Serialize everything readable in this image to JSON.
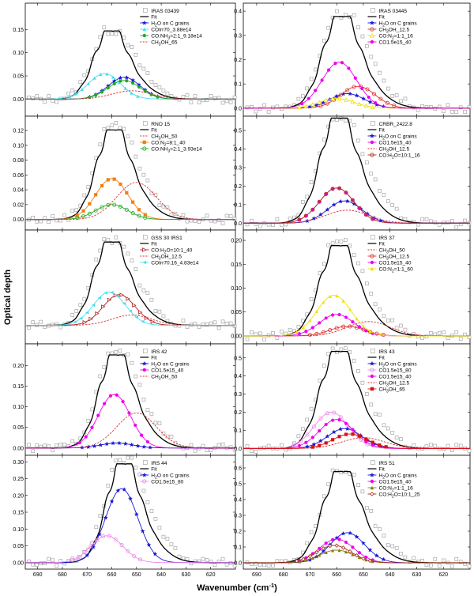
{
  "figure": {
    "ylabel": "Optical depth",
    "xlabel_main": "Wavenumber (cm",
    "xlabel_sup": "-1",
    "xlabel_close": ")",
    "x_ticks": [
      690,
      680,
      670,
      660,
      650,
      640,
      630,
      620
    ]
  },
  "chart_data": [
    {
      "type": "line",
      "title": "IRAS 03439",
      "xlim": [
        695,
        610
      ],
      "ylim": [
        -0.03,
        0.2
      ],
      "yticks": [
        "0.00",
        "0.05",
        "0.10",
        "0.15"
      ],
      "peak": 0.14,
      "peak_center": 661,
      "series": [
        {
          "name": "Fit",
          "style": "fit",
          "peak": 0.14,
          "center": 661
        },
        {
          "name": "H2O on C grains",
          "label": [
            "H",
            "2",
            "O on C grains"
          ],
          "style": "star",
          "color": "#1a1ad8",
          "peak": 0.047,
          "center": 655
        },
        {
          "name": "COIrr70_3.88e14",
          "style": "tri",
          "color": "#40e0f0",
          "peak": 0.055,
          "center": 663
        },
        {
          "name": "CO:NH3=2:1_9.18e14",
          "label": [
            "CO:NH",
            "3",
            "=2:1_9.18e14"
          ],
          "style": "circle",
          "color": "#22aa22",
          "peak": 0.04,
          "center": 655
        },
        {
          "name": "CH3OH_65",
          "label": [
            "CH",
            "3",
            "OH_65"
          ],
          "style": "dash",
          "color": "#e03030",
          "peak": 0.018,
          "center": 652
        }
      ]
    },
    {
      "type": "line",
      "title": "IRAS 03445",
      "xlim": [
        695,
        610
      ],
      "ylim": [
        -0.02,
        0.42
      ],
      "yticks": [
        "0.0",
        "0.1",
        "0.2",
        "0.3",
        "0.4"
      ],
      "peak": 0.37,
      "peak_center": 659,
      "series": [
        {
          "name": "Fit",
          "style": "fit",
          "peak": 0.36,
          "center": 659
        },
        {
          "name": "H2O on C grains",
          "label": [
            "H",
            "2",
            "O on C grains"
          ],
          "style": "star",
          "color": "#1a1ad8",
          "peak": 0.06,
          "center": 656
        },
        {
          "name": "CH3OH_12.5",
          "label": [
            "CH",
            "3",
            "OH_12.5"
          ],
          "style": "ocircle",
          "color": "#e03030",
          "peak": 0.09,
          "center": 652
        },
        {
          "name": "CO:N2=1:1_16",
          "label": [
            "CO:N",
            "2",
            "=1:1_16"
          ],
          "style": "otri",
          "color": "#f0e000",
          "peak": 0.04,
          "center": 660
        },
        {
          "name": "CO1.5e15_40",
          "style": "circle",
          "color": "#ee00ee",
          "peak": 0.19,
          "center": 659
        }
      ]
    },
    {
      "type": "line",
      "title": "RNO 15",
      "xlim": [
        695,
        610
      ],
      "ylim": [
        -0.01,
        0.135
      ],
      "yticks": [
        "0.00",
        "0.02",
        "0.04",
        "0.06",
        "0.08",
        "0.10",
        "0.12"
      ],
      "peak": 0.12,
      "peak_center": 660,
      "series": [
        {
          "name": "Fit",
          "style": "fit",
          "peak": 0.115,
          "center": 660
        },
        {
          "name": "CH3OH_50",
          "label": [
            "CH",
            "3",
            "OH_50"
          ],
          "style": "dash",
          "color": "#e03030",
          "peak": 0.05,
          "center": 650
        },
        {
          "name": "CO:N2=8:1_40",
          "label": [
            "CO:N",
            "2",
            "=8:1_40"
          ],
          "style": "square",
          "color": "#f08010",
          "peak": 0.055,
          "center": 660
        },
        {
          "name": "CO:NH3=2:1_3.93e14",
          "label": [
            "CO:NH",
            "3",
            "=2:1_3.93e14"
          ],
          "style": "ocircle",
          "color": "#22aa22",
          "peak": 0.02,
          "center": 660
        }
      ]
    },
    {
      "type": "line",
      "title": "CRBR_2422.8",
      "xlim": [
        695,
        610
      ],
      "ylim": [
        -0.02,
        0.56
      ],
      "yticks": [
        "0.0",
        "0.1",
        "0.2",
        "0.3",
        "0.4",
        "0.5"
      ],
      "peak": 0.54,
      "peak_center": 660,
      "series": [
        {
          "name": "Fit",
          "style": "fit",
          "peak": 0.54,
          "center": 660
        },
        {
          "name": "H2O on C grains",
          "label": [
            "H",
            "2",
            "O on C grains"
          ],
          "style": "star",
          "color": "#1a1ad8",
          "peak": 0.12,
          "center": 657
        },
        {
          "name": "CO1.5e15_40",
          "style": "circle",
          "color": "#ee00ee",
          "peak": 0.19,
          "center": 660
        },
        {
          "name": "CH3OH_12.5",
          "label": [
            "CH",
            "3",
            "OH_12.5"
          ],
          "style": "dash",
          "color": "#e03030",
          "peak": 0.07,
          "center": 656
        },
        {
          "name": "CO:H2O=10:1_16",
          "label": [
            "CO:H",
            "2",
            "O=10:1_16"
          ],
          "style": "ocircle",
          "color": "#b03020",
          "peak": 0.19,
          "center": 660
        }
      ]
    },
    {
      "type": "line",
      "title": "GSS 30 IRS1",
      "xlim": [
        695,
        610
      ],
      "ylim": [
        -0.03,
        0.18
      ],
      "yticks": [],
      "peak": 0.16,
      "peak_center": 661,
      "series": [
        {
          "name": "Fit",
          "style": "fit",
          "peak": 0.155,
          "center": 661
        },
        {
          "name": "CO:H2O=10:1_40",
          "label": [
            "CO:H",
            "2",
            "O=10:1_40"
          ],
          "style": "otri-r",
          "color": "#b02020",
          "peak": 0.06,
          "center": 657
        },
        {
          "name": "CH3OH_12.5",
          "label": [
            "CH",
            "3",
            "OH_12.5"
          ],
          "style": "dash",
          "color": "#e03030",
          "peak": 0.02,
          "center": 652
        },
        {
          "name": "COIrr70.16_4.83e14",
          "style": "tri-l",
          "color": "#40e0f0",
          "peak": 0.065,
          "center": 661
        }
      ]
    },
    {
      "type": "line",
      "title": "IRS 37",
      "xlim": [
        695,
        610
      ],
      "ylim": [
        -0.01,
        0.215
      ],
      "yticks": [
        "0.00",
        "0.05",
        "0.10",
        "0.15",
        "0.20"
      ],
      "peak": 0.185,
      "peak_center": 660,
      "series": [
        {
          "name": "Fit",
          "style": "fit",
          "peak": 0.18,
          "center": 660
        },
        {
          "name": "CH3OH_50",
          "label": [
            "CH",
            "3",
            "OH_50"
          ],
          "style": "dash",
          "color": "#e03030",
          "peak": 0.03,
          "center": 648
        },
        {
          "name": "CH3OH_12.5",
          "label": [
            "CH",
            "3",
            "OH_12.5"
          ],
          "style": "ocircle",
          "color": "#e03030",
          "peak": 0.02,
          "center": 656
        },
        {
          "name": "CO1.5e15_40",
          "style": "circle",
          "color": "#ee00ee",
          "peak": 0.045,
          "center": 660
        },
        {
          "name": "CO:N2=1:1_60",
          "label": [
            "CO:N",
            "2",
            "=1:1_60"
          ],
          "style": "tri",
          "color": "#f0e000",
          "peak": 0.085,
          "center": 661
        }
      ]
    },
    {
      "type": "line",
      "title": "IRS 42",
      "xlim": [
        695,
        610
      ],
      "ylim": [
        -0.01,
        0.245
      ],
      "yticks": [
        "0.00",
        "0.05",
        "0.10",
        "0.15",
        "0.20"
      ],
      "peak": 0.22,
      "peak_center": 659,
      "series": [
        {
          "name": "Fit",
          "style": "fit",
          "peak": 0.215,
          "center": 659
        },
        {
          "name": "H2O on C grains",
          "label": [
            "H",
            "2",
            "O on C grains"
          ],
          "style": "star",
          "color": "#1a1ad8",
          "peak": 0.012,
          "center": 658
        },
        {
          "name": "CO1.5e15_40",
          "style": "circle",
          "color": "#ee00ee",
          "peak": 0.13,
          "center": 659
        },
        {
          "name": "CH3OH_50",
          "label": [
            "CH",
            "3",
            "OH_50"
          ],
          "style": "dash",
          "color": "#e03030",
          "peak": 0.085,
          "center": 650
        }
      ]
    },
    {
      "type": "line",
      "title": "IRS 43",
      "xlim": [
        695,
        610
      ],
      "ylim": [
        -0.02,
        0.56
      ],
      "yticks": [
        "0.0",
        "0.1",
        "0.2",
        "0.3",
        "0.4",
        "0.5"
      ],
      "peak": 0.52,
      "peak_center": 660,
      "series": [
        {
          "name": "Fit",
          "style": "fit",
          "peak": 0.51,
          "center": 660
        },
        {
          "name": "H2O on C grains",
          "label": [
            "H",
            "2",
            "O on C grains"
          ],
          "style": "star",
          "color": "#1a1ad8",
          "peak": 0.11,
          "center": 657
        },
        {
          "name": "CO1.5e15_80",
          "style": "ocircle",
          "color": "#ee88ee",
          "peak": 0.2,
          "center": 662
        },
        {
          "name": "CO1.5e15_40",
          "style": "circle",
          "color": "#ee00ee",
          "peak": 0.16,
          "center": 660
        },
        {
          "name": "CH3OH_12.5",
          "label": [
            "CH",
            "3",
            "OH_12.5"
          ],
          "style": "dash",
          "color": "#e03030",
          "peak": 0.06,
          "center": 650
        },
        {
          "name": "CH3OH_65",
          "label": [
            "CH",
            "3",
            "OH_65"
          ],
          "style": "square",
          "color": "#dd1010",
          "peak": 0.08,
          "center": 655
        }
      ]
    },
    {
      "type": "line",
      "title": "IRS 44",
      "xlim": [
        695,
        610
      ],
      "ylim": [
        -0.01,
        0.31
      ],
      "yticks": [
        "0.00",
        "0.05",
        "0.10",
        "0.15",
        "0.20",
        "0.25",
        "0.30"
      ],
      "peak": 0.29,
      "peak_center": 656,
      "series": [
        {
          "name": "Fit",
          "style": "fit",
          "peak": 0.28,
          "center": 656
        },
        {
          "name": "H2O on C grains",
          "label": [
            "H",
            "2",
            "O on C grains"
          ],
          "style": "star",
          "color": "#1a1ad8",
          "peak": 0.22,
          "center": 656
        },
        {
          "name": "CO1.5e15_80",
          "style": "ocircle",
          "color": "#ee88ee",
          "peak": 0.08,
          "center": 662
        }
      ]
    },
    {
      "type": "line",
      "title": "IRS 51",
      "xlim": [
        695,
        610
      ],
      "ylim": [
        -0.02,
        0.66
      ],
      "yticks": [
        "0.0",
        "0.1",
        "0.2",
        "0.3",
        "0.4",
        "0.5",
        "0.6"
      ],
      "peak": 0.55,
      "peak_center": 659,
      "series": [
        {
          "name": "Fit",
          "style": "fit",
          "peak": 0.55,
          "center": 659
        },
        {
          "name": "H2O on C grains",
          "label": [
            "H",
            "2",
            "O on C grains"
          ],
          "style": "star",
          "color": "#1a1ad8",
          "peak": 0.19,
          "center": 656
        },
        {
          "name": "CO1.5e15_40",
          "style": "circle",
          "color": "#ee00ee",
          "peak": 0.15,
          "center": 660
        },
        {
          "name": "CO:N2=1:1_16",
          "label": [
            "CO:N",
            "2",
            "=1:1_16"
          ],
          "style": "tri",
          "color": "#8a7a10",
          "peak": 0.08,
          "center": 660
        },
        {
          "name": "CO:H2O=10:1_25",
          "label": [
            "CO:H",
            "2",
            "O=10:1_25"
          ],
          "style": "diamond",
          "color": "#a03010",
          "peak": 0.11,
          "center": 661
        }
      ]
    }
  ]
}
